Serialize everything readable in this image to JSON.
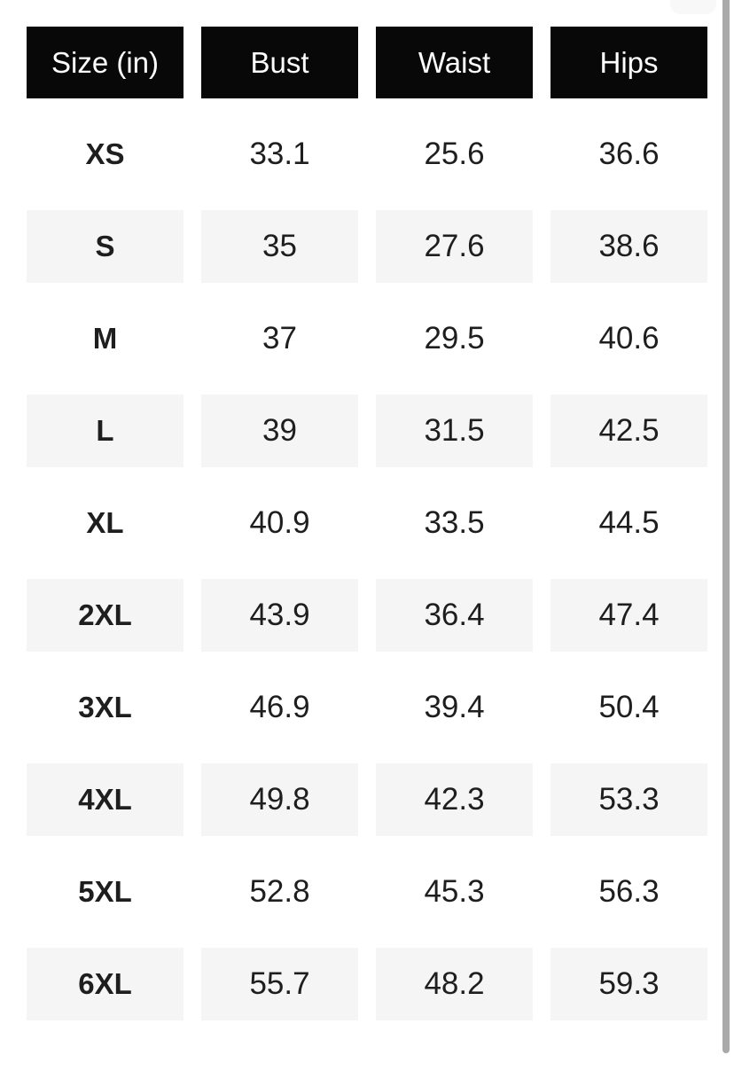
{
  "colors": {
    "header_bg": "#080808",
    "header_text": "#ffffff",
    "row_shade": "#f5f5f6",
    "body_text": "#1e1e1e",
    "scrollbar_thumb": "#a9a9a9",
    "cutoff_element": "#f8f8f8",
    "page_bg": "#ffffff"
  },
  "table": {
    "columns": [
      "Size (in)",
      "Bust",
      "Waist",
      "Hips"
    ],
    "rows": [
      {
        "size": "XS",
        "bust": "33.1",
        "waist": "25.6",
        "hips": "36.6"
      },
      {
        "size": "S",
        "bust": "35",
        "waist": "27.6",
        "hips": "38.6"
      },
      {
        "size": "M",
        "bust": "37",
        "waist": "29.5",
        "hips": "40.6"
      },
      {
        "size": "L",
        "bust": "39",
        "waist": "31.5",
        "hips": "42.5"
      },
      {
        "size": "XL",
        "bust": "40.9",
        "waist": "33.5",
        "hips": "44.5"
      },
      {
        "size": "2XL",
        "bust": "43.9",
        "waist": "36.4",
        "hips": "47.4"
      },
      {
        "size": "3XL",
        "bust": "46.9",
        "waist": "39.4",
        "hips": "50.4"
      },
      {
        "size": "4XL",
        "bust": "49.8",
        "waist": "42.3",
        "hips": "53.3"
      },
      {
        "size": "5XL",
        "bust": "52.8",
        "waist": "45.3",
        "hips": "56.3"
      },
      {
        "size": "6XL",
        "bust": "55.7",
        "waist": "48.2",
        "hips": "59.3"
      }
    ]
  }
}
